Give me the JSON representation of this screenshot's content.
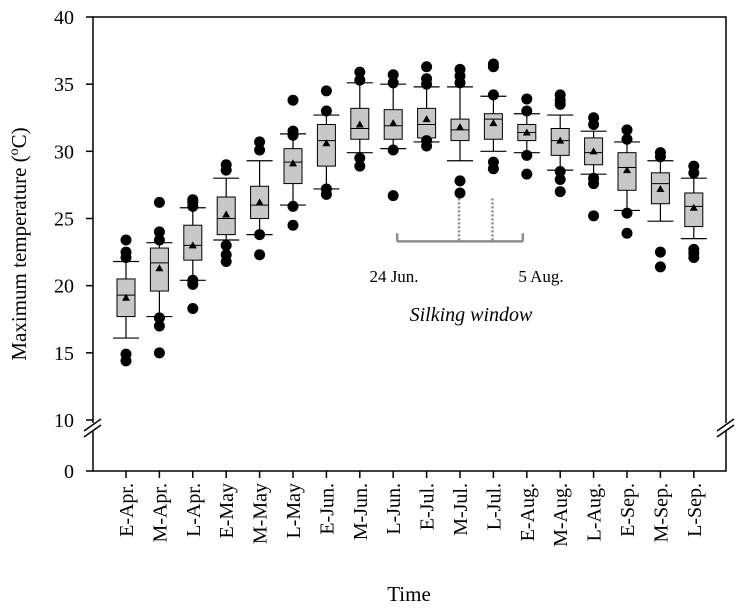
{
  "chart_data": {
    "type": "box",
    "xlabel": "Time",
    "ylabel_main": "Maximum temperature (",
    "ylabel_sup": "o",
    "ylabel_tail": "C)",
    "ylim": [
      10,
      40
    ],
    "y_ticks": [
      10,
      15,
      20,
      25,
      30,
      35,
      40
    ],
    "y_zero_label": "0",
    "y_break": true,
    "categories": [
      "E-Apr.",
      "M-Apr.",
      "L-Apr.",
      "E-May",
      "M-May",
      "L-May",
      "E-Jun.",
      "M-Jun.",
      "L-Jun.",
      "E-Jul.",
      "M-Jul.",
      "L-Jul.",
      "E-Aug.",
      "M-Aug.",
      "L-Aug.",
      "E-Sep.",
      "M-Sep.",
      "L-Sep."
    ],
    "boxes": [
      {
        "whisker_low": 16.1,
        "q1": 17.7,
        "median": 19.3,
        "q3": 20.5,
        "whisker_high": 21.8,
        "mean": 19.1,
        "outliers": [
          14.4,
          14.9,
          22.1,
          22.5,
          23.4
        ]
      },
      {
        "whisker_low": 17.7,
        "q1": 19.6,
        "median": 21.7,
        "q3": 22.8,
        "whisker_high": 23.2,
        "mean": 21.3,
        "outliers": [
          15.0,
          17.0,
          17.6,
          23.4,
          24.0,
          26.2
        ]
      },
      {
        "whisker_low": 20.4,
        "q1": 21.9,
        "median": 23.0,
        "q3": 24.5,
        "whisker_high": 25.8,
        "mean": 23.0,
        "outliers": [
          18.3,
          20.1,
          20.4,
          25.9,
          26.2,
          26.4
        ]
      },
      {
        "whisker_low": 23.4,
        "q1": 23.8,
        "median": 25.0,
        "q3": 26.6,
        "whisker_high": 28.0,
        "mean": 25.3,
        "outliers": [
          21.8,
          22.3,
          23.0,
          28.6,
          29.0
        ]
      },
      {
        "whisker_low": 23.8,
        "q1": 25.0,
        "median": 26.0,
        "q3": 27.4,
        "whisker_high": 29.3,
        "mean": 26.2,
        "outliers": [
          22.3,
          23.8,
          30.1,
          30.7
        ]
      },
      {
        "whisker_low": 26.0,
        "q1": 27.6,
        "median": 29.2,
        "q3": 30.2,
        "whisker_high": 31.3,
        "mean": 29.1,
        "outliers": [
          24.5,
          25.9,
          31.2,
          31.5,
          33.8
        ]
      },
      {
        "whisker_low": 27.2,
        "q1": 28.9,
        "median": 30.8,
        "q3": 32.0,
        "whisker_high": 32.7,
        "mean": 30.6,
        "outliers": [
          26.8,
          27.2,
          33.0,
          34.5
        ]
      },
      {
        "whisker_low": 29.9,
        "q1": 30.9,
        "median": 31.7,
        "q3": 33.2,
        "whisker_high": 35.1,
        "mean": 32.0,
        "outliers": [
          28.9,
          29.5,
          35.3,
          35.9
        ]
      },
      {
        "whisker_low": 30.2,
        "q1": 30.9,
        "median": 31.9,
        "q3": 33.1,
        "whisker_high": 35.0,
        "mean": 32.1,
        "outliers": [
          26.7,
          30.1,
          35.1,
          35.7
        ]
      },
      {
        "whisker_low": 30.7,
        "q1": 31.0,
        "median": 32.0,
        "q3": 33.2,
        "whisker_high": 34.8,
        "mean": 32.4,
        "outliers": [
          30.4,
          30.8,
          35.0,
          35.4,
          36.3
        ]
      },
      {
        "whisker_low": 29.3,
        "q1": 30.8,
        "median": 31.6,
        "q3": 32.4,
        "whisker_high": 34.8,
        "mean": 31.8,
        "outliers": [
          26.9,
          27.8,
          35.1,
          35.6,
          36.1
        ]
      },
      {
        "whisker_low": 30.0,
        "q1": 30.9,
        "median": 32.4,
        "q3": 32.8,
        "whisker_high": 34.1,
        "mean": 32.1,
        "outliers": [
          28.7,
          29.2,
          34.2,
          36.3,
          36.5
        ]
      },
      {
        "whisker_low": 29.9,
        "q1": 30.8,
        "median": 31.4,
        "q3": 32.0,
        "whisker_high": 32.8,
        "mean": 31.4,
        "outliers": [
          28.3,
          29.7,
          33.0,
          33.9
        ]
      },
      {
        "whisker_low": 28.6,
        "q1": 29.7,
        "median": 30.8,
        "q3": 31.7,
        "whisker_high": 32.7,
        "mean": 30.8,
        "outliers": [
          27.0,
          27.9,
          28.5,
          33.5,
          33.8,
          34.2
        ]
      },
      {
        "whisker_low": 28.3,
        "q1": 29.0,
        "median": 29.9,
        "q3": 31.0,
        "whisker_high": 31.5,
        "mean": 30.0,
        "outliers": [
          25.2,
          27.6,
          28.0,
          32.0,
          32.5
        ]
      },
      {
        "whisker_low": 25.6,
        "q1": 27.1,
        "median": 28.8,
        "q3": 29.9,
        "whisker_high": 30.7,
        "mean": 28.6,
        "outliers": [
          23.9,
          25.4,
          30.9,
          31.6
        ]
      },
      {
        "whisker_low": 24.8,
        "q1": 26.1,
        "median": 27.6,
        "q3": 28.4,
        "whisker_high": 29.3,
        "mean": 27.2,
        "outliers": [
          21.4,
          22.5,
          29.6,
          29.9
        ]
      },
      {
        "whisker_low": 23.5,
        "q1": 24.4,
        "median": 25.9,
        "q3": 26.9,
        "whisker_high": 28.0,
        "mean": 25.8,
        "outliers": [
          22.1,
          22.4,
          22.7,
          28.4,
          28.9
        ]
      }
    ],
    "annotations": {
      "silking_label": "Silking window",
      "start_label": "24 Jun.",
      "end_label": "5 Aug.",
      "start_category": "M-Jul.",
      "end_category": "L-Jul.",
      "bracket_from_category": "L-Jun.",
      "bracket_to_category": "E-Aug.",
      "bracket_y": 23.3,
      "dotted_top_y": 26.5,
      "color": "#8c8c8c"
    },
    "box_fill": "#c8c8c8",
    "outlier_color": "#000000"
  }
}
